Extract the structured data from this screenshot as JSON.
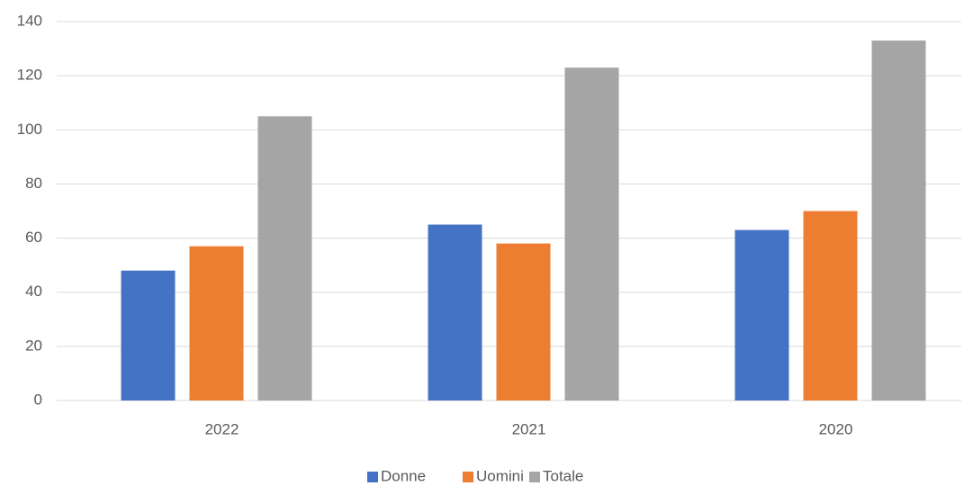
{
  "chart_data": {
    "type": "bar",
    "categories": [
      "2022",
      "2021",
      "2020"
    ],
    "series": [
      {
        "name": "Donne",
        "color": "#4472c4",
        "values": [
          48,
          65,
          63
        ]
      },
      {
        "name": "Uomini",
        "color": "#ed7d31",
        "values": [
          57,
          58,
          70
        ]
      },
      {
        "name": "Totale",
        "color": "#a5a5a5",
        "values": [
          105,
          123,
          133
        ]
      }
    ],
    "ylim": [
      0,
      140
    ],
    "yticks": [
      0,
      20,
      40,
      60,
      80,
      100,
      120,
      140
    ],
    "grid": true,
    "legend": "bottom"
  }
}
